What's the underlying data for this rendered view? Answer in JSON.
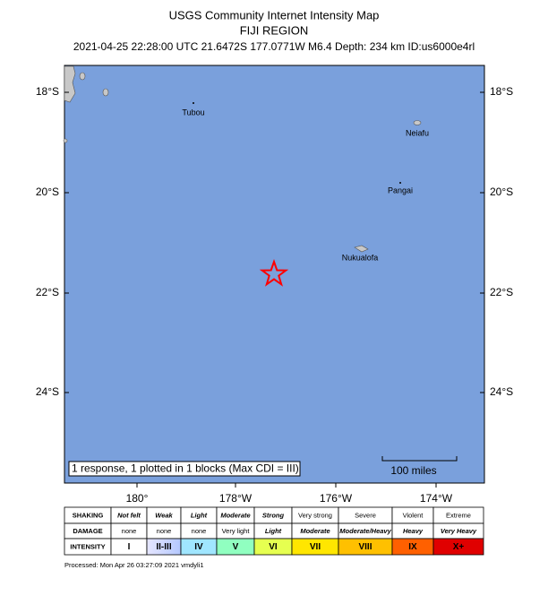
{
  "header": {
    "title": "USGS Community Internet Intensity Map",
    "subtitle": "FIJI REGION",
    "info": "2021-04-25 22:28:00 UTC 21.6472S 177.0771W M6.4 Depth: 234 km ID:us6000e4rl"
  },
  "map": {
    "lat_labels": [
      "18°S",
      "20°S",
      "22°S",
      "24°S"
    ],
    "lon_labels": [
      "180°",
      "178°W",
      "176°W",
      "174°W"
    ],
    "places": [
      "Tubou",
      "Neiafu",
      "Pangai",
      "Nukualofa"
    ],
    "scale_label": "100 miles",
    "legend": "1 response, 1 plotted in 1 blocks (Max CDI = III)"
  },
  "intensity_table": {
    "rows": [
      [
        "SHAKING",
        "Not felt",
        "Weak",
        "Light",
        "Moderate",
        "Strong",
        "Very strong",
        "Severe",
        "Violent",
        "Extreme"
      ],
      [
        "DAMAGE",
        "none",
        "none",
        "none",
        "Very light",
        "Light",
        "Moderate",
        "Moderate/Heavy",
        "Heavy",
        "Very Heavy"
      ],
      [
        "INTENSITY",
        "I",
        "II-III",
        "IV",
        "V",
        "VI",
        "VII",
        "VIII",
        "IX",
        "X+"
      ]
    ]
  },
  "footer": "Processed: Mon Apr 26 03:27:09 2021 vmdyli1"
}
